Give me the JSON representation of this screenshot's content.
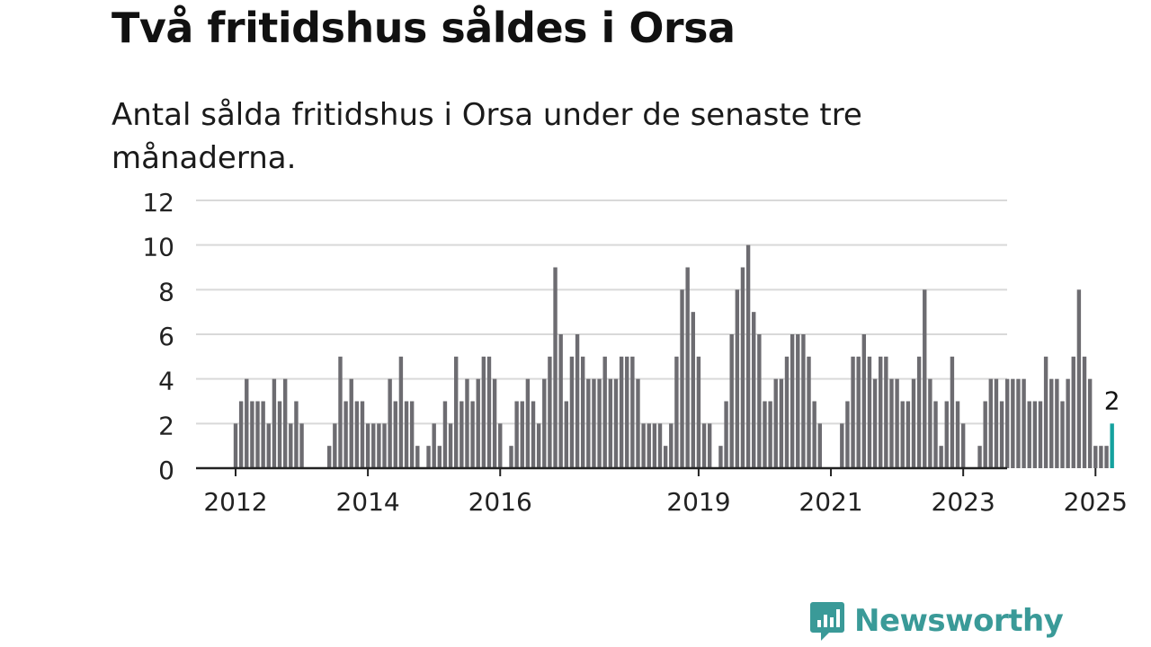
{
  "header": {
    "title": "Två fritidshus såldes i Orsa",
    "subtitle": "Antal sålda fritidshus i Orsa under de senaste tre månaderna."
  },
  "brand": {
    "name": "Newsworthy",
    "icon": "newsworthy-logo-icon",
    "color": "#3a9a98"
  },
  "colors": {
    "bar": "#6d6c71",
    "highlight": "#16a29f",
    "grid": "#d9d9d9",
    "axis": "#222222"
  },
  "chart_data": {
    "type": "bar",
    "title": "Två fritidshus såldes i Orsa",
    "subtitle": "Antal sålda fritidshus i Orsa under de senaste tre månaderna.",
    "xlabel": "",
    "ylabel": "",
    "ylim": [
      0,
      12
    ],
    "yticks": [
      "0",
      "2",
      "4",
      "6",
      "8",
      "10",
      "12"
    ],
    "xticks": [
      {
        "label": "2012",
        "date": "2012-01"
      },
      {
        "label": "2014",
        "date": "2014-01"
      },
      {
        "label": "2016",
        "date": "2016-01"
      },
      {
        "label": "2019",
        "date": "2019-01"
      },
      {
        "label": "2021",
        "date": "2021-01"
      },
      {
        "label": "2023",
        "date": "2023-01"
      },
      {
        "label": "2025",
        "date": "2025-01"
      }
    ],
    "grid": true,
    "highlight": {
      "date": "2025-04",
      "value": 2,
      "label": "2"
    },
    "series": [
      {
        "x": [
          "2012-01",
          "2012-02",
          "2012-03",
          "2012-04",
          "2012-05",
          "2012-06",
          "2012-07",
          "2012-08",
          "2012-09",
          "2012-10",
          "2012-11",
          "2012-12",
          "2013-01",
          "2013-02",
          "2013-03",
          "2013-04",
          "2013-05",
          "2013-06",
          "2013-07",
          "2013-08",
          "2013-09",
          "2013-10",
          "2013-11",
          "2013-12",
          "2014-01",
          "2014-02",
          "2014-03",
          "2014-04",
          "2014-05",
          "2014-06",
          "2014-07",
          "2014-08",
          "2014-09",
          "2014-10",
          "2014-11",
          "2014-12",
          "2015-01",
          "2015-02",
          "2015-03",
          "2015-04",
          "2015-05",
          "2015-06",
          "2015-07",
          "2015-08",
          "2015-09",
          "2015-10",
          "2015-11",
          "2015-12",
          "2016-01",
          "2016-02",
          "2016-03",
          "2016-04",
          "2016-05",
          "2016-06",
          "2016-07",
          "2016-08",
          "2016-09",
          "2016-10",
          "2016-11",
          "2016-12",
          "2017-01",
          "2017-02",
          "2017-03",
          "2017-04",
          "2017-05",
          "2017-06",
          "2017-07",
          "2017-08",
          "2017-09",
          "2017-10",
          "2017-11",
          "2017-12",
          "2018-01",
          "2018-02",
          "2018-03",
          "2018-04",
          "2018-05",
          "2018-06",
          "2018-07",
          "2018-08",
          "2018-09",
          "2018-10",
          "2018-11",
          "2018-12",
          "2019-01",
          "2019-02",
          "2019-03",
          "2019-04",
          "2019-05",
          "2019-06",
          "2019-07",
          "2019-08",
          "2019-09",
          "2019-10",
          "2019-11",
          "2019-12",
          "2020-01",
          "2020-02",
          "2020-03",
          "2020-04",
          "2020-05",
          "2020-06",
          "2020-07",
          "2020-08",
          "2020-09",
          "2020-10",
          "2020-11",
          "2020-12",
          "2021-01",
          "2021-02",
          "2021-03",
          "2021-04",
          "2021-05",
          "2021-06",
          "2021-07",
          "2021-08",
          "2021-09",
          "2021-10",
          "2021-11",
          "2021-12",
          "2022-01",
          "2022-02",
          "2022-03",
          "2022-04",
          "2022-05",
          "2022-06",
          "2022-07",
          "2022-08",
          "2022-09",
          "2022-10",
          "2022-11",
          "2022-12",
          "2023-01",
          "2023-02",
          "2023-03",
          "2023-04",
          "2023-05",
          "2023-06",
          "2023-07",
          "2023-08",
          "2023-09",
          "2023-10",
          "2023-11",
          "2023-12",
          "2024-01",
          "2024-02",
          "2024-03",
          "2024-04",
          "2024-05",
          "2024-06",
          "2024-07",
          "2024-08",
          "2024-09",
          "2024-10",
          "2024-11",
          "2024-12",
          "2025-01",
          "2025-02",
          "2025-03",
          "2025-04"
        ],
        "values": [
          2,
          3,
          4,
          3,
          3,
          3,
          2,
          4,
          3,
          4,
          2,
          3,
          2,
          0,
          0,
          0,
          0,
          1,
          2,
          5,
          3,
          4,
          3,
          3,
          2,
          2,
          2,
          2,
          4,
          3,
          5,
          3,
          3,
          1,
          0,
          1,
          2,
          1,
          3,
          2,
          5,
          3,
          4,
          3,
          4,
          5,
          5,
          4,
          2,
          0,
          1,
          3,
          3,
          4,
          3,
          2,
          4,
          5,
          9,
          6,
          3,
          5,
          6,
          5,
          4,
          4,
          4,
          5,
          4,
          4,
          5,
          5,
          5,
          4,
          2,
          2,
          2,
          2,
          1,
          2,
          5,
          8,
          9,
          7,
          5,
          2,
          2,
          0,
          1,
          3,
          6,
          8,
          9,
          10,
          7,
          6,
          3,
          3,
          4,
          4,
          5,
          6,
          6,
          6,
          5,
          3,
          2,
          0,
          0,
          0,
          2,
          3,
          5,
          5,
          6,
          5,
          4,
          5,
          5,
          4,
          4,
          3,
          3,
          4,
          5,
          8,
          4,
          3,
          1,
          3,
          5,
          3,
          2,
          0,
          0,
          1,
          3,
          4,
          4,
          3,
          4,
          4,
          4,
          4,
          3,
          3,
          3,
          5,
          4,
          4,
          3,
          4,
          5,
          8,
          5,
          4,
          1,
          1,
          1,
          2
        ]
      }
    ]
  }
}
